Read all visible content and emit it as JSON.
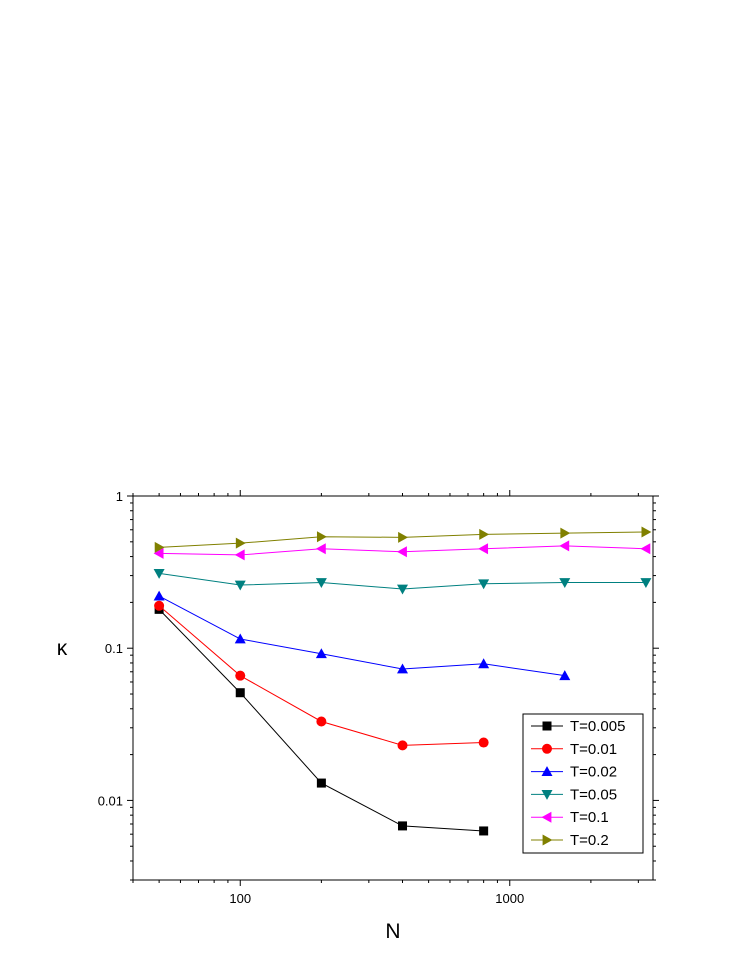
{
  "chart_data": {
    "type": "line",
    "xscale": "log",
    "yscale": "log",
    "xlim": [
      40,
      3400
    ],
    "ylim": [
      0.003,
      1
    ],
    "xlabel": "N",
    "ylabel": "κ",
    "x_tick_labels": [
      {
        "value": 100,
        "label": "100"
      },
      {
        "value": 1000,
        "label": "1000"
      }
    ],
    "y_tick_labels": [
      {
        "value": 0.01,
        "label": "0.01"
      },
      {
        "value": 0.1,
        "label": "0.1"
      },
      {
        "value": 1,
        "label": "1"
      }
    ],
    "legend_position": "bottom-right",
    "grid": false,
    "series": [
      {
        "name": "T=0.005",
        "color": "#000000",
        "marker": "square",
        "x": [
          50,
          100,
          200,
          400,
          800
        ],
        "y": [
          0.18,
          0.051,
          0.013,
          0.0068,
          0.0063
        ]
      },
      {
        "name": "T=0.01",
        "color": "#ff0000",
        "marker": "circle",
        "x": [
          50,
          100,
          200,
          400,
          800
        ],
        "y": [
          0.19,
          0.066,
          0.033,
          0.023,
          0.024
        ]
      },
      {
        "name": "T=0.02",
        "color": "#0000ff",
        "marker": "triangle-up",
        "x": [
          50,
          100,
          200,
          400,
          800,
          1600
        ],
        "y": [
          0.22,
          0.115,
          0.092,
          0.073,
          0.079,
          0.066
        ]
      },
      {
        "name": "T=0.05",
        "color": "#008080",
        "marker": "triangle-down",
        "x": [
          50,
          100,
          200,
          400,
          800,
          1600,
          3200
        ],
        "y": [
          0.31,
          0.26,
          0.27,
          0.245,
          0.265,
          0.27,
          0.27
        ]
      },
      {
        "name": "T=0.1",
        "color": "#ff00ff",
        "marker": "triangle-left",
        "x": [
          50,
          100,
          200,
          400,
          800,
          1600,
          3200
        ],
        "y": [
          0.42,
          0.41,
          0.45,
          0.43,
          0.45,
          0.47,
          0.45
        ]
      },
      {
        "name": "T=0.2",
        "color": "#808000",
        "marker": "triangle-right",
        "x": [
          50,
          100,
          200,
          400,
          800,
          1600,
          3200
        ],
        "y": [
          0.46,
          0.49,
          0.54,
          0.535,
          0.56,
          0.57,
          0.58
        ]
      }
    ]
  }
}
